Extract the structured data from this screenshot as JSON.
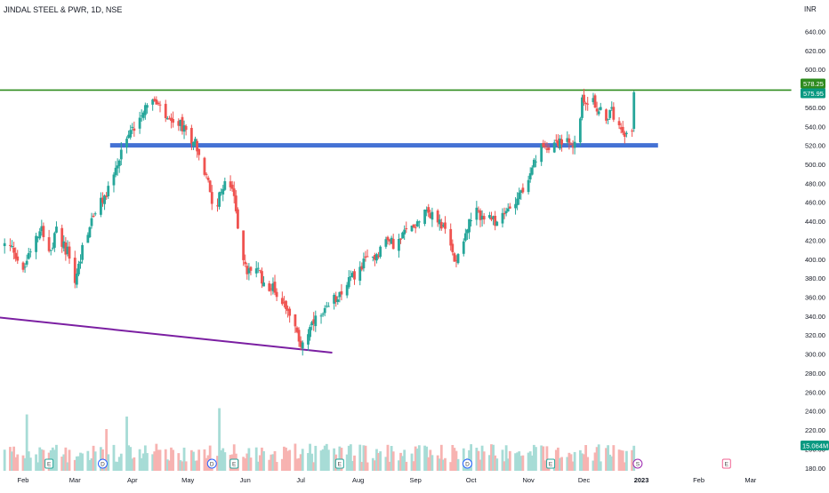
{
  "header": {
    "title": "JINDAL STEEL & PWR, 1D, NSE",
    "currency": "INR"
  },
  "colors": {
    "up": "#26a69a",
    "down": "#ef5350",
    "vol_up": "#a7dcd6",
    "vol_down": "#f7b3b1",
    "resistance": "#2e8b1e",
    "support": "#4472d4",
    "trendline": "#7b1fa2",
    "price_tag": "#089981",
    "axis_text": "#131722"
  },
  "chart_data": {
    "type": "candlestick",
    "title": "JINDAL STEEL & PWR, 1D, NSE",
    "symbol": "JINDAL STEEL & PWR",
    "interval": "1D",
    "exchange": "NSE",
    "currency": "INR",
    "ylim": [
      175,
      655
    ],
    "y_ticks": [
      "640.00",
      "620.00",
      "600.00",
      "580.00",
      "560.00",
      "540.00",
      "520.00",
      "500.00",
      "480.00",
      "460.00",
      "440.00",
      "420.00",
      "400.00",
      "380.00",
      "360.00",
      "340.00",
      "320.00",
      "300.00",
      "280.00",
      "260.00",
      "240.00",
      "220.00",
      "200.00",
      "180.00"
    ],
    "x_ticks": [
      {
        "label": "Feb",
        "day": 0
      },
      {
        "label": "Mar",
        "day": 28
      },
      {
        "label": "Apr",
        "day": 59
      },
      {
        "label": "May",
        "day": 89
      },
      {
        "label": "Jun",
        "day": 120
      },
      {
        "label": "Jul",
        "day": 150
      },
      {
        "label": "Aug",
        "day": 181
      },
      {
        "label": "Sep",
        "day": 212
      },
      {
        "label": "Oct",
        "day": 242
      },
      {
        "label": "Nov",
        "day": 273
      },
      {
        "label": "Dec",
        "day": 303
      },
      {
        "label": "2023",
        "day": 334
      },
      {
        "label": "Feb",
        "day": 365
      },
      {
        "label": "Mar",
        "day": 393
      }
    ],
    "last_price": "575.95",
    "resistance_price": "578.25",
    "volume_label": "15.064M",
    "waypoints": [
      [
        -10,
        415
      ],
      [
        -5,
        410
      ],
      [
        0,
        385
      ],
      [
        5,
        420
      ],
      [
        10,
        435
      ],
      [
        15,
        405
      ],
      [
        18,
        430
      ],
      [
        21,
        418
      ],
      [
        26,
        400
      ],
      [
        28,
        375
      ],
      [
        33,
        420
      ],
      [
        39,
        450
      ],
      [
        44,
        465
      ],
      [
        49,
        490
      ],
      [
        54,
        515
      ],
      [
        57,
        530
      ],
      [
        60,
        540
      ],
      [
        64,
        555
      ],
      [
        68,
        570
      ],
      [
        71,
        565
      ],
      [
        75,
        555
      ],
      [
        80,
        540
      ],
      [
        84,
        545
      ],
      [
        89,
        530
      ],
      [
        93,
        525
      ],
      [
        97,
        495
      ],
      [
        100,
        480
      ],
      [
        103,
        455
      ],
      [
        106,
        465
      ],
      [
        110,
        482
      ],
      [
        112,
        478
      ],
      [
        115,
        455
      ],
      [
        118,
        400
      ],
      [
        121,
        385
      ],
      [
        125,
        395
      ],
      [
        130,
        375
      ],
      [
        135,
        370
      ],
      [
        140,
        355
      ],
      [
        143,
        350
      ],
      [
        147,
        325
      ],
      [
        150,
        310
      ],
      [
        153,
        320
      ],
      [
        158,
        335
      ],
      [
        162,
        340
      ],
      [
        167,
        355
      ],
      [
        171,
        365
      ],
      [
        175,
        375
      ],
      [
        180,
        385
      ],
      [
        186,
        400
      ],
      [
        191,
        405
      ],
      [
        196,
        420
      ],
      [
        202,
        415
      ],
      [
        207,
        430
      ],
      [
        213,
        440
      ],
      [
        217,
        455
      ],
      [
        221,
        445
      ],
      [
        225,
        440
      ],
      [
        229,
        425
      ],
      [
        233,
        400
      ],
      [
        236,
        410
      ],
      [
        239,
        430
      ],
      [
        244,
        450
      ],
      [
        248,
        445
      ],
      [
        253,
        440
      ],
      [
        258,
        440
      ],
      [
        263,
        455
      ],
      [
        268,
        470
      ],
      [
        273,
        480
      ],
      [
        276,
        500
      ],
      [
        279,
        515
      ],
      [
        283,
        520
      ],
      [
        286,
        522
      ],
      [
        290,
        525
      ],
      [
        294,
        522
      ],
      [
        297,
        515
      ],
      [
        299,
        530
      ],
      [
        302,
        565
      ],
      [
        306,
        570
      ],
      [
        310,
        560
      ],
      [
        314,
        550
      ],
      [
        318,
        555
      ],
      [
        322,
        545
      ],
      [
        325,
        535
      ],
      [
        327,
        528
      ],
      [
        329,
        540
      ],
      [
        330,
        576
      ]
    ],
    "volume_spikes": [
      [
        106,
        15.0
      ],
      [
        117,
        27.0
      ],
      [
        56,
        13.0
      ],
      [
        45,
        10.0
      ],
      [
        2,
        13.5
      ]
    ],
    "events": [
      {
        "day": 14,
        "label": "E"
      },
      {
        "day": 43,
        "label": "D"
      },
      {
        "day": 102,
        "label": "D"
      },
      {
        "day": 114,
        "label": "E"
      },
      {
        "day": 171,
        "label": "E"
      },
      {
        "day": 240,
        "label": "D"
      },
      {
        "day": 285,
        "label": "E"
      },
      {
        "day": 332,
        "label": "S"
      },
      {
        "day": 380,
        "label": "E"
      }
    ],
    "lines": [
      {
        "name": "resistance",
        "price": 578.25,
        "x1_day": -20,
        "x2_day": 415
      },
      {
        "name": "support",
        "price": 520,
        "x1_day": 47,
        "x2_day": 343
      },
      {
        "name": "trendline",
        "x1_day": -20,
        "y1": 340,
        "x2_day": 167,
        "y2": 301.5
      }
    ]
  }
}
